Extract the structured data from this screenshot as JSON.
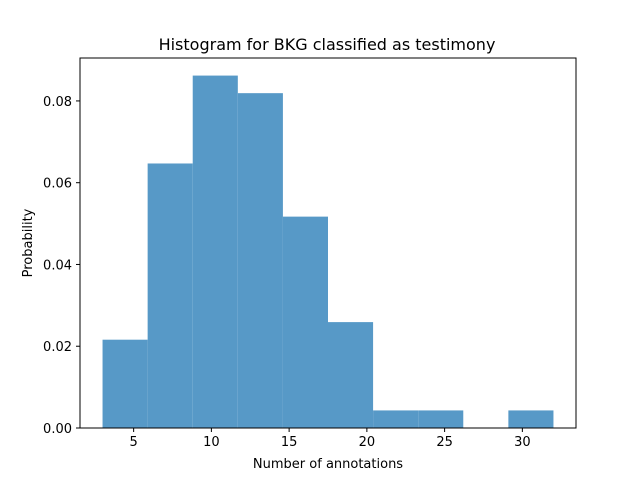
{
  "chart_data": {
    "type": "bar",
    "title": "Histogram for BKG classified as testimony",
    "xlabel": "Number of annotations",
    "ylabel": "Probability",
    "xlim": [
      1.55,
      33.45
    ],
    "ylim": [
      0,
      0.0905
    ],
    "xticks": [
      5,
      10,
      15,
      20,
      25,
      30
    ],
    "xtick_labels": [
      "5",
      "10",
      "15",
      "20",
      "25",
      "30"
    ],
    "yticks": [
      0,
      0.02,
      0.04,
      0.06,
      0.08
    ],
    "ytick_labels": [
      "0.00",
      "0.02",
      "0.04",
      "0.06",
      "0.08"
    ],
    "bins": [
      {
        "x0": 3.0,
        "x1": 5.9,
        "value": 0.0216
      },
      {
        "x0": 5.9,
        "x1": 8.8,
        "value": 0.0647
      },
      {
        "x0": 8.8,
        "x1": 11.7,
        "value": 0.0862
      },
      {
        "x0": 11.7,
        "x1": 14.6,
        "value": 0.0819
      },
      {
        "x0": 14.6,
        "x1": 17.5,
        "value": 0.0517
      },
      {
        "x0": 17.5,
        "x1": 20.4,
        "value": 0.0259
      },
      {
        "x0": 20.4,
        "x1": 23.3,
        "value": 0.0043
      },
      {
        "x0": 23.3,
        "x1": 26.2,
        "value": 0.0043
      },
      {
        "x0": 26.2,
        "x1": 29.1,
        "value": 0.0
      },
      {
        "x0": 29.1,
        "x1": 32.0,
        "value": 0.0043
      }
    ],
    "bar_color": "#5799c7",
    "grid": false,
    "legend": "none"
  }
}
